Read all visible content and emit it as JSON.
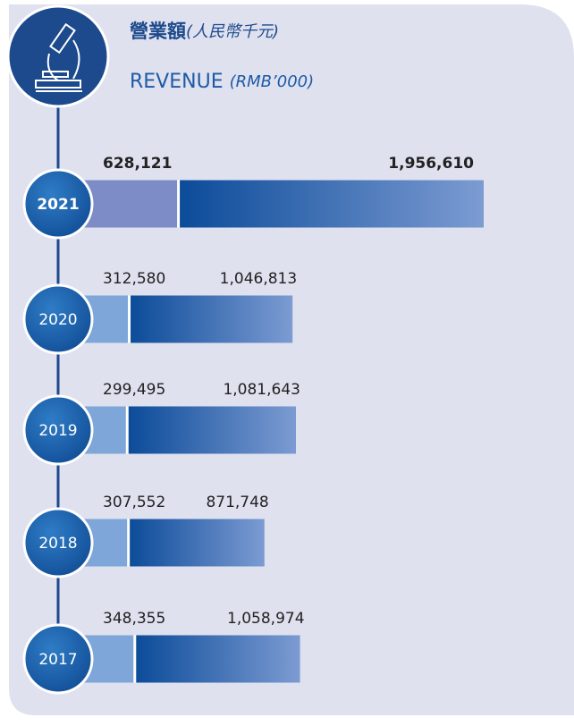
{
  "chart_data": {
    "type": "bar",
    "stacked": true,
    "orientation": "horizontal",
    "title_zh": "營業額",
    "title_zh_unit": "(人民幣千元)",
    "title_en": "REVENUE",
    "title_en_unit": "(RMB’000)",
    "categories": [
      "2021",
      "2020",
      "2019",
      "2018",
      "2017"
    ],
    "series": [
      {
        "color": "#7d8cc6",
        "values": [
          628121,
          312580,
          299495,
          307552,
          348355
        ],
        "value_labels": [
          "628,121",
          "312,580",
          "299,495",
          "307,552",
          "348,355"
        ]
      },
      {
        "color": "#0d4f9e",
        "values": [
          1956610,
          1046813,
          1081643,
          871748,
          1058974
        ],
        "value_labels": [
          "1,956,610",
          "1,046,813",
          "1,081,643",
          "871,748",
          "1,058,974"
        ]
      }
    ]
  }
}
